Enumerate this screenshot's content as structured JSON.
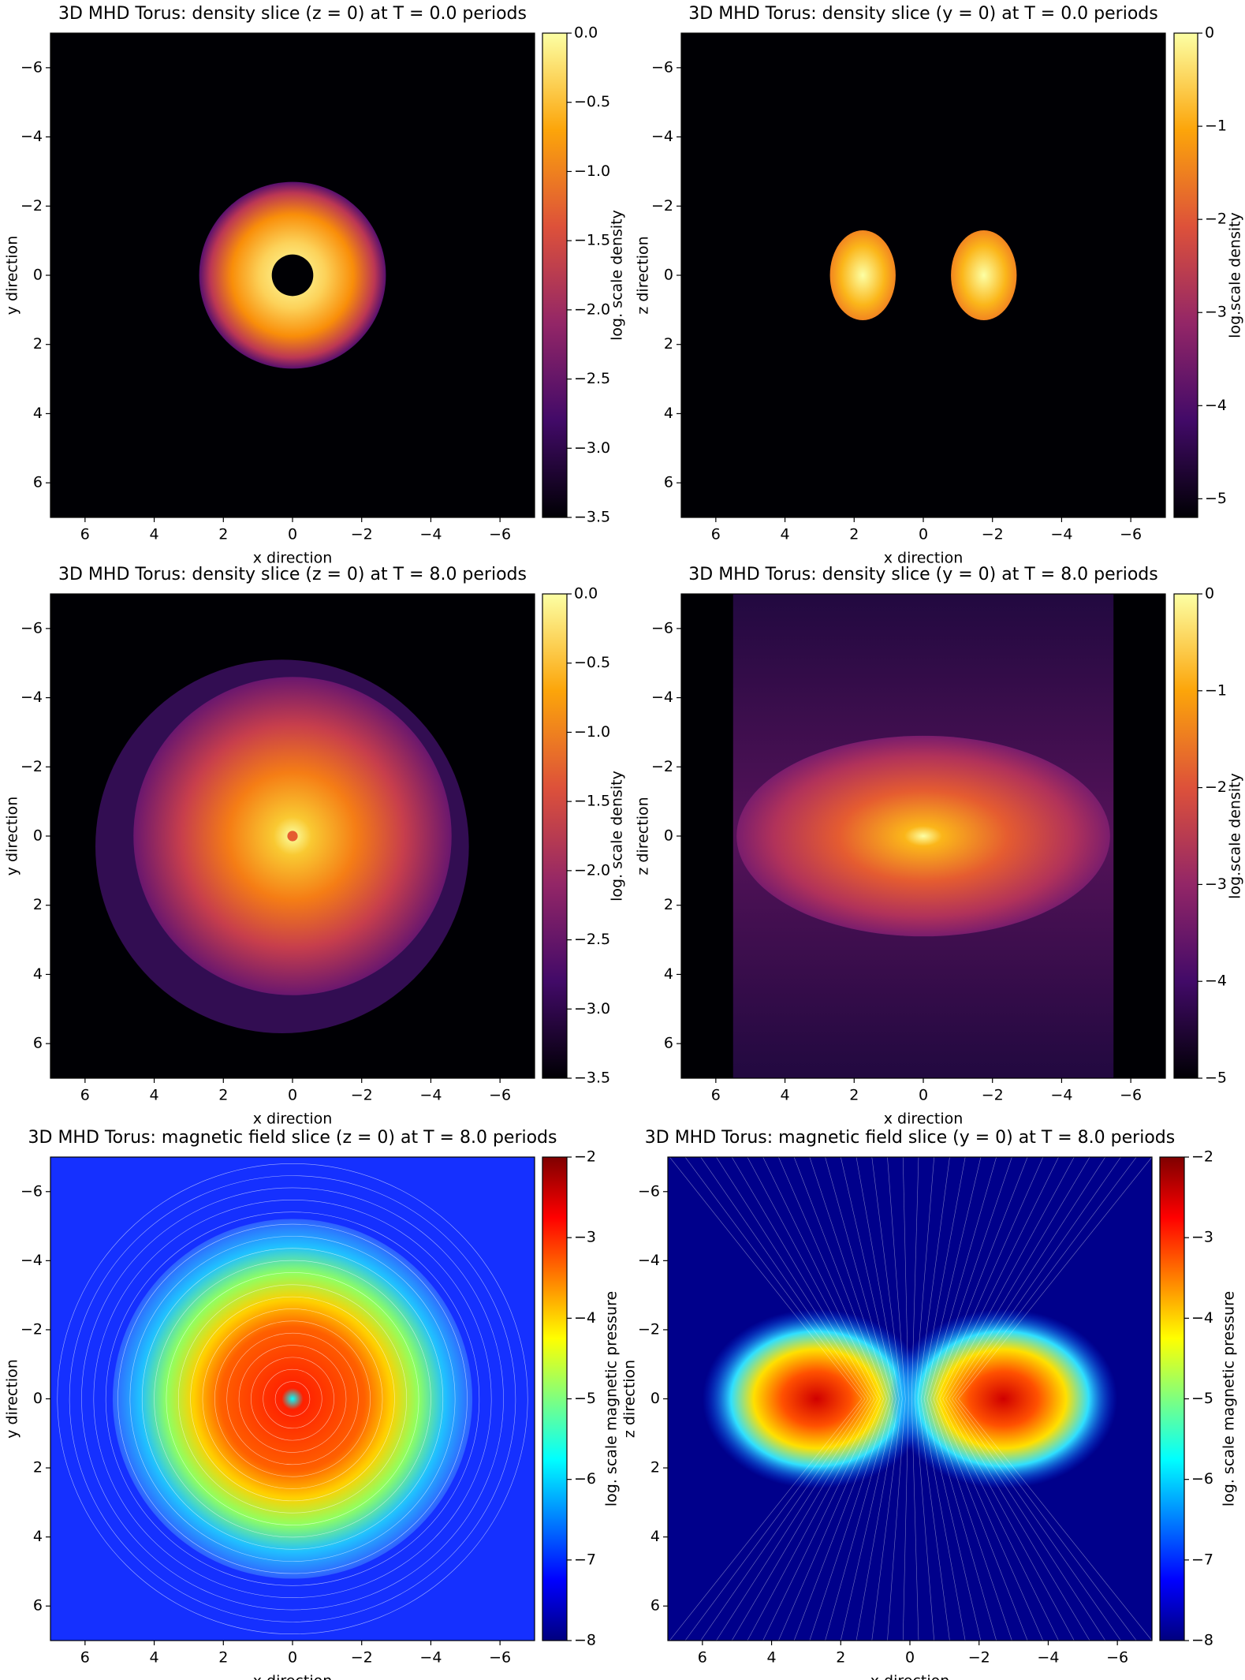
{
  "chart_data": [
    {
      "type": "heatmap",
      "title": "3D MHD Torus: density slice (z = 0) at T = 0.0 periods",
      "xlabel": "x direction",
      "ylabel": "y direction",
      "colorbar_label": "log. scale density",
      "xlim": [
        7,
        -7
      ],
      "ylim": [
        7,
        -7
      ],
      "xticks": [
        6,
        4,
        2,
        0,
        {
          "value": -2,
          "label": "−2"
        },
        {
          "value": -4,
          "label": "−4"
        },
        {
          "value": -6,
          "label": "−6"
        }
      ],
      "yticks": [
        {
          "value": -6,
          "label": "−6"
        },
        {
          "value": -4,
          "label": "−4"
        },
        {
          "value": -2,
          "label": "−2"
        },
        0,
        2,
        4,
        6
      ],
      "clim": [
        -3.5,
        0
      ],
      "cticks": [
        {
          "value": 0,
          "label": "0.0"
        },
        {
          "value": -0.5,
          "label": "−0.5"
        },
        {
          "value": -1,
          "label": "−1.0"
        },
        {
          "value": -1.5,
          "label": "−1.5"
        },
        {
          "value": -2,
          "label": "−2.0"
        },
        {
          "value": -2.5,
          "label": "−2.5"
        },
        {
          "value": -3,
          "label": "−3.0"
        },
        {
          "value": -3.5,
          "label": "−3.5"
        }
      ],
      "colormap": [
        "#000004",
        "#420a68",
        "#932667",
        "#dd513a",
        "#fca50a",
        "#fcffa4"
      ]
    },
    {
      "type": "heatmap",
      "title": "3D MHD Torus: density slice (y = 0) at T = 0.0 periods",
      "xlabel": "x direction",
      "ylabel": "z direction",
      "colorbar_label": "log.scale density",
      "xlim": [
        7,
        -7
      ],
      "ylim": [
        7,
        -7
      ],
      "xticks": [
        6,
        4,
        2,
        0,
        {
          "value": -2,
          "label": "−2"
        },
        {
          "value": -4,
          "label": "−4"
        },
        {
          "value": -6,
          "label": "−6"
        }
      ],
      "yticks": [
        {
          "value": -6,
          "label": "−6"
        },
        {
          "value": -4,
          "label": "−4"
        },
        {
          "value": -2,
          "label": "−2"
        },
        0,
        2,
        4,
        6
      ],
      "clim": [
        -5.2,
        0
      ],
      "cticks": [
        0,
        {
          "value": -1,
          "label": "−1"
        },
        {
          "value": -2,
          "label": "−2"
        },
        {
          "value": -3,
          "label": "−3"
        },
        {
          "value": -4,
          "label": "−4"
        },
        {
          "value": -5,
          "label": "−5"
        }
      ],
      "colormap": [
        "#000004",
        "#420a68",
        "#932667",
        "#dd513a",
        "#fca50a",
        "#fcffa4"
      ]
    },
    {
      "type": "heatmap",
      "title": "3D MHD Torus: density slice (z = 0) at T = 8.0 periods",
      "xlabel": "x direction",
      "ylabel": "y direction",
      "colorbar_label": "log. scale density",
      "xlim": [
        7,
        -7
      ],
      "ylim": [
        7,
        -7
      ],
      "xticks": [
        6,
        4,
        2,
        0,
        {
          "value": -2,
          "label": "−2"
        },
        {
          "value": -4,
          "label": "−4"
        },
        {
          "value": -6,
          "label": "−6"
        }
      ],
      "yticks": [
        {
          "value": -6,
          "label": "−6"
        },
        {
          "value": -4,
          "label": "−4"
        },
        {
          "value": -2,
          "label": "−2"
        },
        0,
        2,
        4,
        6
      ],
      "clim": [
        -3.5,
        0
      ],
      "cticks": [
        {
          "value": 0,
          "label": "0.0"
        },
        {
          "value": -0.5,
          "label": "−0.5"
        },
        {
          "value": -1,
          "label": "−1.0"
        },
        {
          "value": -1.5,
          "label": "−1.5"
        },
        {
          "value": -2,
          "label": "−2.0"
        },
        {
          "value": -2.5,
          "label": "−2.5"
        },
        {
          "value": -3,
          "label": "−3.0"
        },
        {
          "value": -3.5,
          "label": "−3.5"
        }
      ],
      "colormap": [
        "#000004",
        "#420a68",
        "#932667",
        "#dd513a",
        "#fca50a",
        "#fcffa4"
      ]
    },
    {
      "type": "heatmap",
      "title": "3D MHD Torus: density slice (y = 0) at T = 8.0 periods",
      "xlabel": "x direction",
      "ylabel": "z direction",
      "colorbar_label": "log.scale density",
      "xlim": [
        7,
        -7
      ],
      "ylim": [
        7,
        -7
      ],
      "xticks": [
        6,
        4,
        2,
        0,
        {
          "value": -2,
          "label": "−2"
        },
        {
          "value": -4,
          "label": "−4"
        },
        {
          "value": -6,
          "label": "−6"
        }
      ],
      "yticks": [
        {
          "value": -6,
          "label": "−6"
        },
        {
          "value": -4,
          "label": "−4"
        },
        {
          "value": -2,
          "label": "−2"
        },
        0,
        2,
        4,
        6
      ],
      "clim": [
        -5,
        0
      ],
      "cticks": [
        0,
        {
          "value": -1,
          "label": "−1"
        },
        {
          "value": -2,
          "label": "−2"
        },
        {
          "value": -3,
          "label": "−3"
        },
        {
          "value": -4,
          "label": "−4"
        },
        {
          "value": -5,
          "label": "−5"
        }
      ],
      "colormap": [
        "#000004",
        "#420a68",
        "#932667",
        "#dd513a",
        "#fca50a",
        "#fcffa4"
      ]
    },
    {
      "type": "heatmap",
      "title": "3D MHD Torus: magnetic field slice (z = 0) at T = 8.0 periods",
      "xlabel": "x direction",
      "ylabel": "y direction",
      "colorbar_label": "log. scale magnetic pressure",
      "xlim": [
        7,
        -7
      ],
      "ylim": [
        7,
        -7
      ],
      "xticks": [
        6,
        4,
        2,
        0,
        {
          "value": -2,
          "label": "−2"
        },
        {
          "value": -4,
          "label": "−4"
        },
        {
          "value": -6,
          "label": "−6"
        }
      ],
      "yticks": [
        {
          "value": -6,
          "label": "−6"
        },
        {
          "value": -4,
          "label": "−4"
        },
        {
          "value": -2,
          "label": "−2"
        },
        0,
        2,
        4,
        6
      ],
      "clim": [
        -8,
        -2
      ],
      "cticks": [
        {
          "value": -2,
          "label": "−2"
        },
        {
          "value": -3,
          "label": "−3"
        },
        {
          "value": -4,
          "label": "−4"
        },
        {
          "value": -5,
          "label": "−5"
        },
        {
          "value": -6,
          "label": "−6"
        },
        {
          "value": -7,
          "label": "−7"
        },
        {
          "value": -8,
          "label": "−8"
        }
      ],
      "colormap": [
        "#00007f",
        "#0000ff",
        "#007fff",
        "#00ffff",
        "#7fff7f",
        "#ffff00",
        "#ff7f00",
        "#ff0000",
        "#7f0000"
      ]
    },
    {
      "type": "heatmap",
      "title": "3D MHD Torus: magnetic field slice (y = 0) at T = 8.0 periods",
      "xlabel": "x direction",
      "ylabel": "z direction",
      "colorbar_label": "log. scale magnetic pressure",
      "xlim": [
        7,
        -7
      ],
      "ylim": [
        7,
        -7
      ],
      "xticks": [
        6,
        4,
        2,
        0,
        {
          "value": -2,
          "label": "−2"
        },
        {
          "value": -4,
          "label": "−4"
        },
        {
          "value": -6,
          "label": "−6"
        }
      ],
      "yticks": [
        {
          "value": -6,
          "label": "−6"
        },
        {
          "value": -4,
          "label": "−4"
        },
        {
          "value": -2,
          "label": "−2"
        },
        0,
        2,
        4,
        6
      ],
      "clim": [
        -8,
        -2
      ],
      "cticks": [
        {
          "value": -2,
          "label": "−2"
        },
        {
          "value": -3,
          "label": "−3"
        },
        {
          "value": -4,
          "label": "−4"
        },
        {
          "value": -5,
          "label": "−5"
        },
        {
          "value": -6,
          "label": "−6"
        },
        {
          "value": -7,
          "label": "−7"
        },
        {
          "value": -8,
          "label": "−8"
        }
      ],
      "colormap": [
        "#00007f",
        "#0000ff",
        "#007fff",
        "#00ffff",
        "#7fff7f",
        "#ffff00",
        "#ff7f00",
        "#ff0000",
        "#7f0000"
      ]
    }
  ]
}
